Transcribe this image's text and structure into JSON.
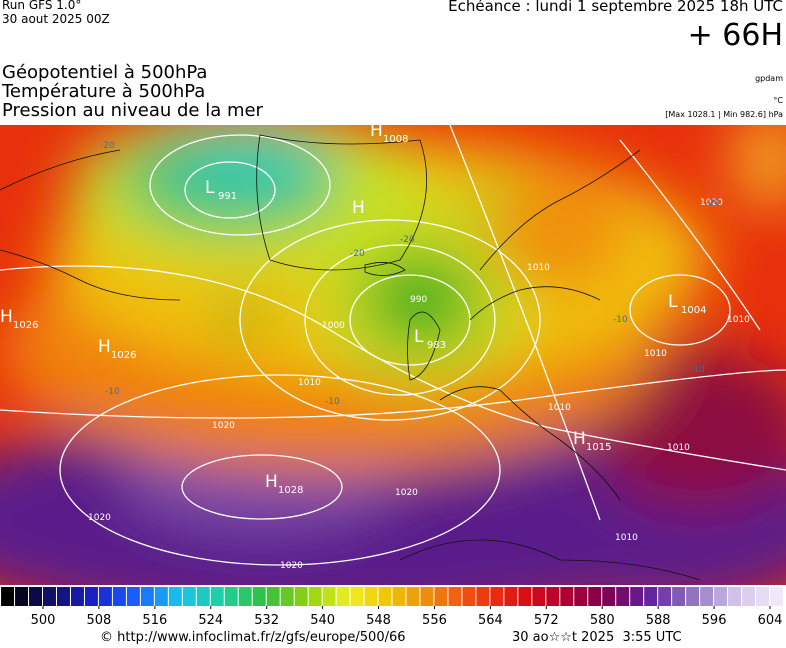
{
  "header": {
    "run": "Run GFS 1.0°",
    "date": "30 aout 2025 00Z",
    "echeance": "Echéance : lundi 1 septembre 2025 18h UTC",
    "lead": "+ 66H"
  },
  "legend": {
    "titles": [
      "Géopotentiel à 500hPa",
      "Température à 500hPa",
      "Pression au niveau de la mer"
    ],
    "units": [
      "gpdam",
      "°C",
      "[Max 1028.1 | Min 982.6] hPa"
    ]
  },
  "map": {
    "centers": [
      {
        "symbol": "H",
        "value": "1008"
      },
      {
        "symbol": "L",
        "value": "991"
      },
      {
        "symbol": "H",
        "value": ""
      },
      {
        "symbol": "H",
        "value": "1026"
      },
      {
        "symbol": "H",
        "value": "1026"
      },
      {
        "symbol": "L",
        "value": "983"
      },
      {
        "symbol": "L",
        "value": "1004"
      },
      {
        "symbol": "H",
        "value": "1015"
      },
      {
        "symbol": "H",
        "value": "1028"
      }
    ],
    "contour_labels": [
      "1020",
      "1010",
      "1000",
      "990",
      "1010",
      "1020",
      "1020",
      "1010",
      "1010",
      "1010",
      "1010",
      "1020",
      "1020",
      "1010"
    ],
    "temp_labels": [
      "-20",
      "-20",
      "-20",
      "-20",
      "-10",
      "-10",
      "-10",
      "-10"
    ]
  },
  "colorbar": {
    "lim": [
      494,
      606
    ],
    "ticks": [
      500,
      508,
      516,
      524,
      532,
      540,
      548,
      556,
      564,
      572,
      580,
      588,
      596,
      604
    ]
  },
  "footer": {
    "url": "© http://www.infoclimat.fr/z/gfs/europe/500/66",
    "stamp": "30 ao☆☆t 2025  3:55 UTC"
  }
}
